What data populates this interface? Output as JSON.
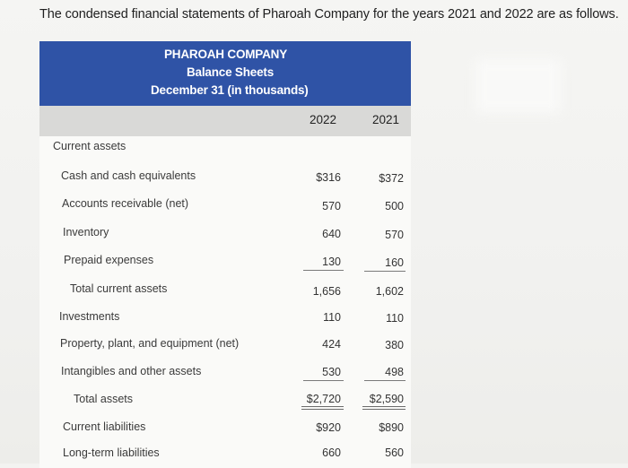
{
  "intro_text": "The condensed financial statements of Pharoah Company for the years 2021 and 2022 are as follows.",
  "header": {
    "company": "PHAROAH COMPANY",
    "statement": "Balance Sheets",
    "date": "December 31 (in thousands)"
  },
  "columns": {
    "y2022": "2022",
    "y2021": "2021"
  },
  "rows": {
    "current_assets": {
      "label": "Current assets"
    },
    "cash": {
      "label": "Cash and cash equivalents",
      "v2022": "$316",
      "v2021": "$372"
    },
    "receivable": {
      "label": "Accounts receivable (net)",
      "v2022": "570",
      "v2021": "500"
    },
    "inventory": {
      "label": "Inventory",
      "v2022": "640",
      "v2021": "570"
    },
    "prepaid": {
      "label": "Prepaid expenses",
      "v2022": "130",
      "v2021": "160"
    },
    "total_current": {
      "label": "Total current assets",
      "v2022": "1,656",
      "v2021": "1,602"
    },
    "investments": {
      "label": "Investments",
      "v2022": "110",
      "v2021": "110"
    },
    "ppe": {
      "label": "Property, plant, and equipment (net)",
      "v2022": "424",
      "v2021": "380"
    },
    "intangibles": {
      "label": "Intangibles and other assets",
      "v2022": "530",
      "v2021": "498"
    },
    "total_assets": {
      "label": "Total assets",
      "v2022": "$2,720",
      "v2021": "$2,590"
    },
    "current_liabilities": {
      "label": "Current liabilities",
      "v2022": "$920",
      "v2021": "$890"
    },
    "long_term": {
      "label": "Long-term liabilities",
      "v2022": "660",
      "v2021": "560"
    }
  }
}
